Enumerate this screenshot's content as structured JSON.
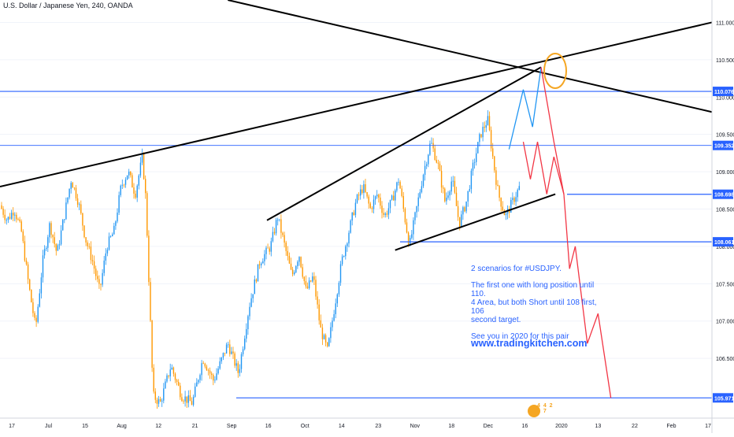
{
  "header": {
    "symbol_title": "U.S. Dollar / Japanese Yen, 240, OANDA"
  },
  "annotation": {
    "line1": "2 scenarios for #USDJPY.",
    "line2": "The first one with long position until 110.",
    "line3": "4 Area, but both Short until 108 first, 106",
    "line4": "second target.",
    "line5": "See you in 2020 for this pair",
    "url": "www.tradingkitchen.com"
  },
  "logo": {
    "text": "4 4 2 1 7"
  },
  "colors": {
    "up_candle": "#2196f3",
    "down_candle": "#ff9800",
    "hline": "#2962ff",
    "trendline": "#000000",
    "bull_path": "#2196f3",
    "bear_path": "#f23645",
    "highlight_circle": "#f5a623",
    "axis_text": "#131722",
    "axis_border": "#d1d4dc"
  },
  "chart_data": {
    "type": "candlestick",
    "timeframe": "240",
    "x_labels": [
      "17",
      "Jul",
      "15",
      "Aug",
      "12",
      "21",
      "Sep",
      "16",
      "Oct",
      "14",
      "23",
      "Nov",
      "18",
      "Dec",
      "16",
      "2020",
      "13",
      "22",
      "Feb",
      "17"
    ],
    "x_ticks_px": [],
    "y_ticks": [
      "111.000",
      "110.500",
      "110.000",
      "109.500",
      "109.000",
      "108.500",
      "108.000",
      "107.500",
      "107.000",
      "106.500"
    ],
    "ylim": [
      105.7,
      111.3
    ],
    "price_labels": [
      {
        "value": 110.076,
        "label": "110.076"
      },
      {
        "value": 109.352,
        "label": "109.352"
      },
      {
        "value": 108.698,
        "label": "108.698"
      },
      {
        "value": 108.061,
        "label": "108.061"
      },
      {
        "value": 105.971,
        "label": "105.971"
      }
    ],
    "horizontal_levels": [
      110.076,
      109.352,
      108.698,
      108.061,
      105.971
    ],
    "price_path": [
      [
        0.0,
        108.55
      ],
      [
        0.01,
        108.35
      ],
      [
        0.02,
        108.5
      ],
      [
        0.03,
        108.2
      ],
      [
        0.04,
        107.5
      ],
      [
        0.05,
        106.9
      ],
      [
        0.06,
        107.8
      ],
      [
        0.07,
        108.3
      ],
      [
        0.08,
        107.9
      ],
      [
        0.09,
        108.4
      ],
      [
        0.1,
        108.9
      ],
      [
        0.11,
        108.6
      ],
      [
        0.12,
        108.1
      ],
      [
        0.13,
        107.8
      ],
      [
        0.14,
        107.4
      ],
      [
        0.15,
        108.0
      ],
      [
        0.16,
        108.2
      ],
      [
        0.17,
        108.8
      ],
      [
        0.18,
        109.0
      ],
      [
        0.19,
        108.7
      ],
      [
        0.2,
        109.2
      ],
      [
        0.205,
        108.6
      ],
      [
        0.21,
        107.3
      ],
      [
        0.215,
        106.0
      ],
      [
        0.225,
        105.9
      ],
      [
        0.24,
        106.4
      ],
      [
        0.255,
        106.0
      ],
      [
        0.27,
        105.9
      ],
      [
        0.285,
        106.5
      ],
      [
        0.3,
        106.2
      ],
      [
        0.32,
        106.7
      ],
      [
        0.335,
        106.3
      ],
      [
        0.35,
        107.2
      ],
      [
        0.365,
        107.8
      ],
      [
        0.38,
        108.0
      ],
      [
        0.39,
        108.4
      ],
      [
        0.4,
        108.0
      ],
      [
        0.41,
        107.6
      ],
      [
        0.42,
        107.9
      ],
      [
        0.43,
        107.4
      ],
      [
        0.44,
        107.6
      ],
      [
        0.45,
        106.9
      ],
      [
        0.46,
        106.6
      ],
      [
        0.47,
        107.2
      ],
      [
        0.48,
        107.8
      ],
      [
        0.49,
        108.2
      ],
      [
        0.5,
        108.6
      ],
      [
        0.51,
        108.8
      ],
      [
        0.52,
        108.5
      ],
      [
        0.53,
        108.7
      ],
      [
        0.54,
        108.4
      ],
      [
        0.55,
        108.6
      ],
      [
        0.56,
        108.9
      ],
      [
        0.57,
        108.3
      ],
      [
        0.575,
        108.0
      ],
      [
        0.585,
        108.5
      ],
      [
        0.595,
        109.0
      ],
      [
        0.605,
        109.4
      ],
      [
        0.615,
        109.1
      ],
      [
        0.625,
        108.6
      ],
      [
        0.635,
        108.9
      ],
      [
        0.645,
        108.3
      ],
      [
        0.655,
        108.6
      ],
      [
        0.665,
        109.1
      ],
      [
        0.675,
        109.5
      ],
      [
        0.685,
        109.7
      ],
      [
        0.695,
        109.0
      ],
      [
        0.7,
        108.7
      ],
      [
        0.71,
        108.4
      ],
      [
        0.72,
        108.6
      ],
      [
        0.73,
        108.8
      ]
    ],
    "trendlines": [
      {
        "from": [
          0.0,
          108.8
        ],
        "to": [
          1.0,
          111.0
        ],
        "style": "solid"
      },
      {
        "from": [
          0.32,
          111.3
        ],
        "to": [
          1.0,
          109.8
        ],
        "style": "solid"
      },
      {
        "from": [
          0.375,
          108.35
        ],
        "to": [
          0.76,
          110.4
        ],
        "style": "solid"
      },
      {
        "from": [
          0.555,
          107.95
        ],
        "to": [
          0.78,
          108.7
        ],
        "style": "solid"
      }
    ],
    "scenario_bull": [
      [
        0.715,
        109.3
      ],
      [
        0.735,
        110.1
      ],
      [
        0.748,
        109.6
      ],
      [
        0.76,
        110.4
      ]
    ],
    "scenario_bear": [
      [
        0.76,
        110.4
      ],
      [
        0.778,
        109.4
      ],
      [
        0.792,
        108.7
      ],
      [
        0.8,
        107.7
      ],
      [
        0.808,
        108.0
      ],
      [
        0.825,
        106.7
      ],
      [
        0.84,
        107.1
      ],
      [
        0.858,
        105.97
      ]
    ],
    "scenario_bear_alt": [
      [
        0.735,
        109.4
      ],
      [
        0.745,
        108.9
      ],
      [
        0.755,
        109.4
      ],
      [
        0.768,
        108.7
      ],
      [
        0.778,
        109.2
      ],
      [
        0.792,
        108.7
      ]
    ]
  }
}
